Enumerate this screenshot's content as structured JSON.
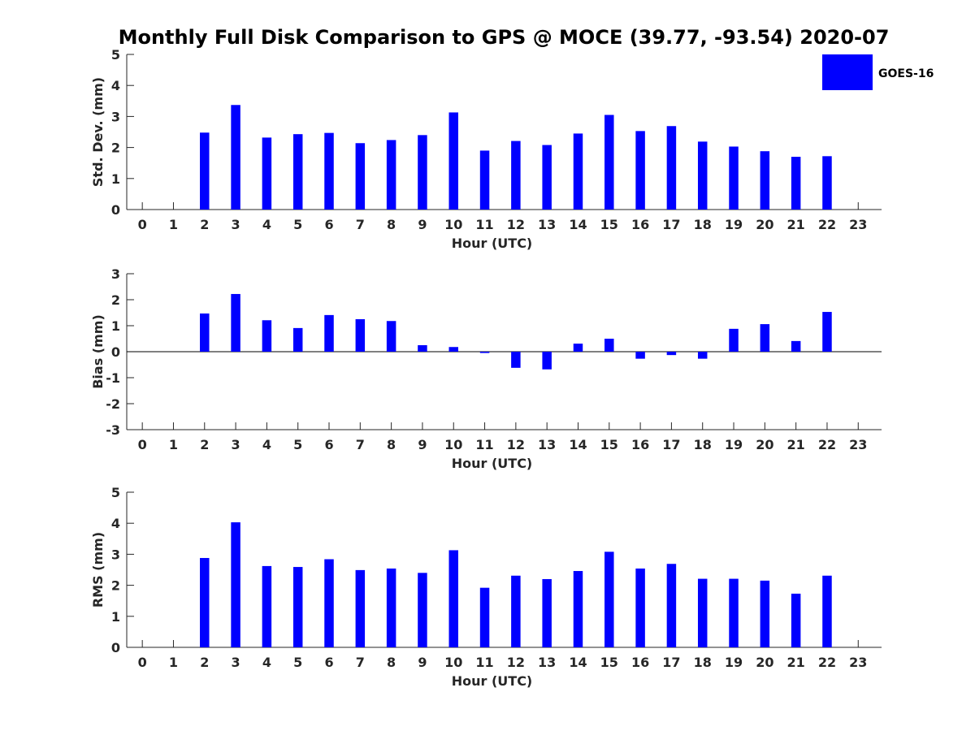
{
  "chart_data": {
    "title": "Monthly Full Disk Comparison to GPS @ MOCE (39.77, -93.54) 2020-07",
    "legend": {
      "entries": [
        "GOES-16"
      ],
      "placement": "top-right"
    },
    "bar_color": "#0000ff",
    "panels": [
      {
        "type": "bar",
        "xlabel": "Hour (UTC)",
        "ylabel": "Std. Dev. (mm)",
        "ylim": [
          0,
          5
        ],
        "yticks": [
          "0",
          "1",
          "2",
          "3",
          "4",
          "5"
        ],
        "xlim": [
          -0.5,
          23.75
        ],
        "xticks": [
          "0",
          "1",
          "2",
          "3",
          "4",
          "5",
          "6",
          "7",
          "8",
          "9",
          "10",
          "11",
          "12",
          "13",
          "14",
          "15",
          "16",
          "17",
          "18",
          "19",
          "20",
          "21",
          "22",
          "23"
        ],
        "grid": false,
        "series": [
          {
            "name": "GOES-16",
            "x": [
              2,
              3,
              4,
              5,
              6,
              7,
              8,
              9,
              10,
              11,
              12,
              13,
              14,
              15,
              16,
              17,
              18,
              19,
              20,
              21,
              22
            ],
            "values": [
              2.48,
              3.37,
              2.32,
              2.43,
              2.47,
              2.14,
              2.24,
              2.4,
              3.13,
              1.9,
              2.21,
              2.08,
              2.45,
              3.05,
              2.53,
              2.69,
              2.19,
              2.03,
              1.88,
              1.7,
              1.72
            ]
          }
        ]
      },
      {
        "type": "bar",
        "xlabel": "Hour (UTC)",
        "ylabel": "Bias (mm)",
        "ylim": [
          -3,
          3
        ],
        "yticks": [
          "-3",
          "-2",
          "-1",
          "0",
          "1",
          "2",
          "3"
        ],
        "xlim": [
          -0.5,
          23.75
        ],
        "xticks": [
          "0",
          "1",
          "2",
          "3",
          "4",
          "5",
          "6",
          "7",
          "8",
          "9",
          "10",
          "11",
          "12",
          "13",
          "14",
          "15",
          "16",
          "17",
          "18",
          "19",
          "20",
          "21",
          "22",
          "23"
        ],
        "grid": false,
        "zero_line": true,
        "series": [
          {
            "name": "GOES-16",
            "x": [
              2,
              3,
              4,
              5,
              6,
              7,
              8,
              9,
              10,
              11,
              12,
              13,
              14,
              15,
              16,
              17,
              18,
              19,
              20,
              21,
              22
            ],
            "values": [
              1.47,
              2.22,
              1.21,
              0.91,
              1.41,
              1.25,
              1.18,
              0.25,
              0.18,
              -0.05,
              -0.62,
              -0.68,
              0.31,
              0.5,
              -0.27,
              -0.13,
              -0.27,
              0.88,
              1.06,
              0.41,
              1.53
            ]
          }
        ]
      },
      {
        "type": "bar",
        "xlabel": "Hour (UTC)",
        "ylabel": "RMS (mm)",
        "ylim": [
          0,
          5
        ],
        "yticks": [
          "0",
          "1",
          "2",
          "3",
          "4",
          "5"
        ],
        "xlim": [
          -0.5,
          23.75
        ],
        "xticks": [
          "0",
          "1",
          "2",
          "3",
          "4",
          "5",
          "6",
          "7",
          "8",
          "9",
          "10",
          "11",
          "12",
          "13",
          "14",
          "15",
          "16",
          "17",
          "18",
          "19",
          "20",
          "21",
          "22",
          "23"
        ],
        "grid": false,
        "series": [
          {
            "name": "GOES-16",
            "x": [
              2,
              3,
              4,
              5,
              6,
              7,
              8,
              9,
              10,
              11,
              12,
              13,
              14,
              15,
              16,
              17,
              18,
              19,
              20,
              21,
              22
            ],
            "values": [
              2.88,
              4.03,
              2.62,
              2.59,
              2.84,
              2.49,
              2.54,
              2.4,
              3.13,
              1.92,
              2.31,
              2.2,
              2.46,
              3.08,
              2.54,
              2.69,
              2.21,
              2.21,
              2.15,
              1.73,
              2.31
            ]
          }
        ]
      }
    ]
  }
}
